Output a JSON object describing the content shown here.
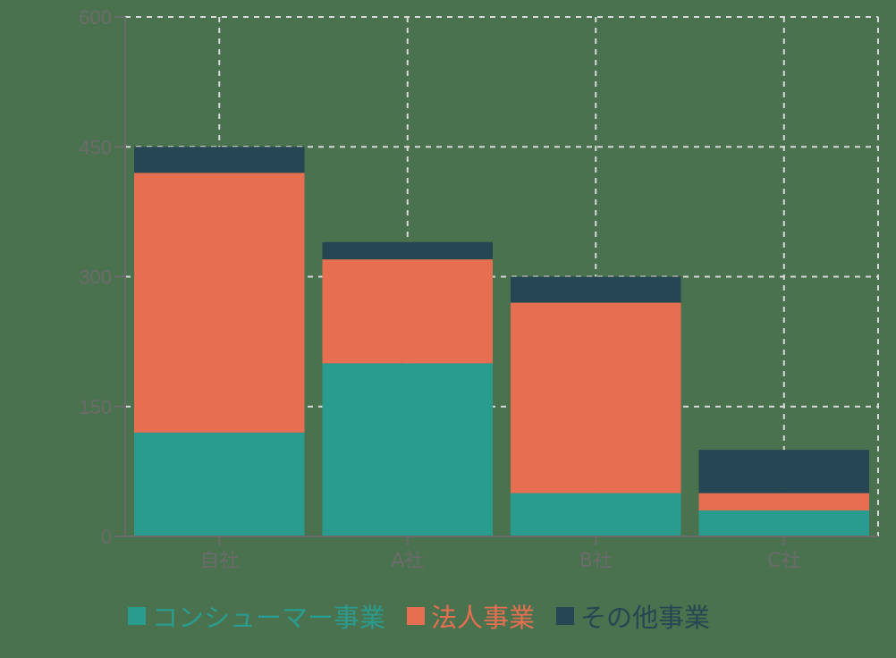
{
  "chart_data": {
    "type": "bar",
    "stacked": true,
    "title": "",
    "xlabel": "",
    "ylabel": "",
    "categories": [
      "自社",
      "A社",
      "B社",
      "C社"
    ],
    "series": [
      {
        "name": "コンシューマー事業",
        "color": "#2a9c8f",
        "values": [
          120,
          200,
          50,
          30
        ]
      },
      {
        "name": "法人事業",
        "color": "#e76f51",
        "values": [
          300,
          120,
          220,
          20
        ]
      },
      {
        "name": "その他事業",
        "color": "#264653",
        "values": [
          30,
          20,
          30,
          50
        ]
      }
    ],
    "ylim": [
      0,
      600
    ],
    "yticks": [
      0,
      150,
      300,
      450,
      600
    ],
    "grid": true,
    "legend_position": "bottom"
  },
  "colors": {
    "background": "#4a724e",
    "axis": "#6b6b6b",
    "grid": "#d9d9d9",
    "tick_label": "#6b6b6b"
  }
}
